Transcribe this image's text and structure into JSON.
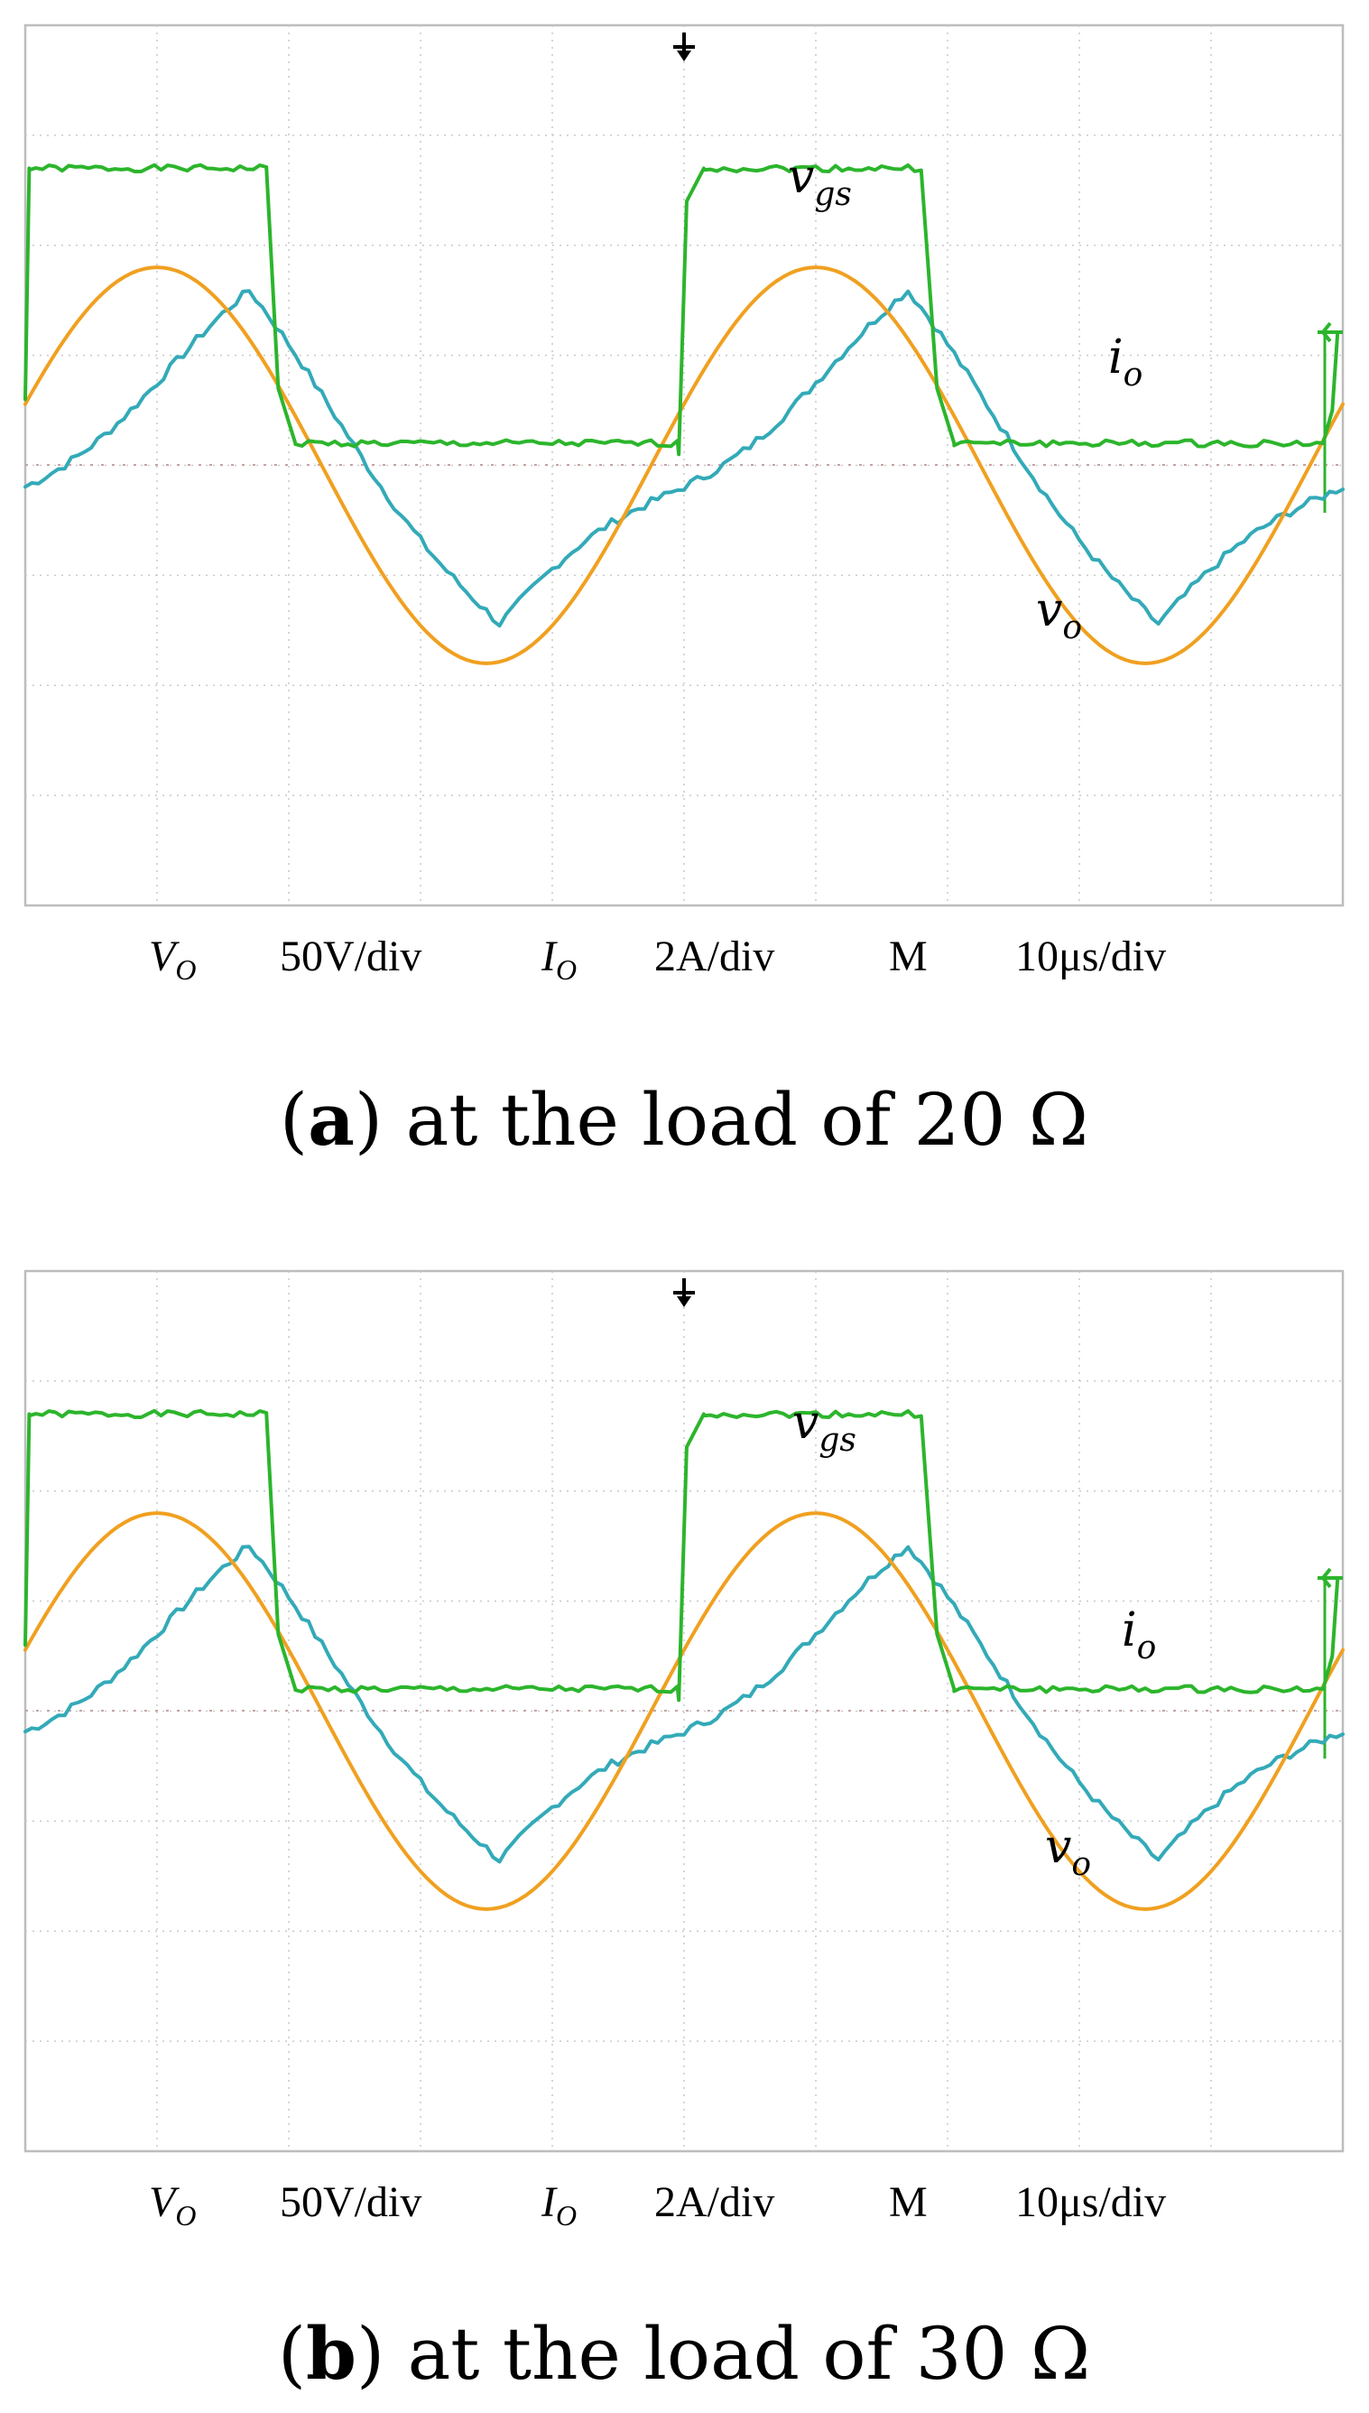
{
  "colors": {
    "vgs": "#2cb52c",
    "vo": "#f0a020",
    "io": "#33aab8",
    "grid": "#c9c9c9",
    "frame": "#bdbdbd"
  },
  "labels": {
    "vgs_main": "v",
    "vgs_sub": "gs",
    "io_main": "i",
    "io_sub": "o",
    "vo_main": "v",
    "vo_sub": "o"
  },
  "scale_bar": {
    "vo_ch": "V",
    "vo_ch_sub": "O",
    "vo_scale": "50V/div",
    "io_ch": "I",
    "io_ch_sub": "O",
    "io_scale": "2A/div",
    "m_ch": "M",
    "time_scale": "10μs/div"
  },
  "panels": {
    "a": {
      "caption_letter": "a",
      "caption_text": "at the load of 20 Ω"
    },
    "b": {
      "caption_letter": "b",
      "caption_text": "at the load of 30 Ω"
    }
  },
  "chart_data": [
    {
      "type": "line",
      "x_unit": "μs",
      "x": [
        0,
        10,
        20,
        30,
        40,
        50,
        60,
        70,
        80,
        90,
        100
      ],
      "series": [
        {
          "name": "vgs",
          "values": [
            2.7,
            2.7,
            0.2,
            0.2,
            2.7,
            2.7,
            0.2,
            0.2,
            2.7,
            2.7,
            0.2
          ]
        },
        {
          "name": "vo",
          "values": [
            0.0,
            1.8,
            0.4,
            -1.8,
            -0.2,
            1.8,
            0.4,
            -1.8,
            0.0,
            1.8,
            0.4
          ]
        },
        {
          "name": "io",
          "values": [
            -0.5,
            1.6,
            1.0,
            -1.3,
            0.2,
            1.6,
            1.0,
            -1.3,
            0.2,
            1.6,
            1.0
          ]
        }
      ],
      "xlim": [
        0,
        100
      ],
      "ylim": [
        -4,
        4
      ],
      "grid": true,
      "panel": "a"
    },
    {
      "type": "line",
      "x_unit": "μs",
      "x": [
        0,
        10,
        20,
        30,
        40,
        50,
        60,
        70,
        80,
        90,
        100
      ],
      "series": [
        {
          "name": "vgs",
          "values": [
            2.7,
            2.7,
            0.2,
            0.2,
            2.7,
            2.7,
            0.2,
            0.2,
            2.7,
            2.7,
            0.2
          ]
        },
        {
          "name": "vo",
          "values": [
            0.0,
            1.8,
            0.4,
            -1.8,
            -0.2,
            1.8,
            0.4,
            -1.8,
            0.0,
            1.8,
            0.4
          ]
        },
        {
          "name": "io",
          "values": [
            -0.5,
            1.5,
            1.0,
            -1.1,
            0.2,
            1.5,
            1.0,
            -1.1,
            0.2,
            1.5,
            1.0
          ]
        }
      ],
      "xlim": [
        0,
        100
      ],
      "ylim": [
        -4,
        4
      ],
      "grid": true,
      "panel": "b"
    }
  ]
}
